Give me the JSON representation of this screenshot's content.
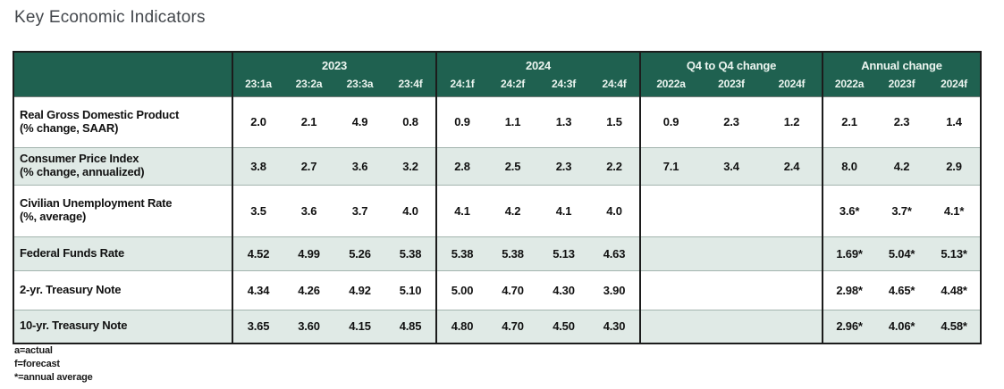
{
  "page": {
    "title": "Key Economic Indicators"
  },
  "colors": {
    "header_bg": "#1f6150",
    "header_text": "#ecf5f0",
    "stripe_bg": "#e0eae6",
    "border_dark": "#1c1c1c",
    "border_light": "#a3b4ae",
    "title_text": "#43474c"
  },
  "chart_data": {
    "type": "table",
    "title": "Key Economic Indicators",
    "column_groups": [
      {
        "label": "2023",
        "columns": [
          "23:1a",
          "23:2a",
          "23:3a",
          "23:4f"
        ]
      },
      {
        "label": "2024",
        "columns": [
          "24:1f",
          "24:2f",
          "24:3f",
          "24:4f"
        ]
      },
      {
        "label": "Q4 to Q4 change",
        "columns": [
          "2022a",
          "2023f",
          "2024f"
        ]
      },
      {
        "label": "Annual change",
        "columns": [
          "2022a",
          "2023f",
          "2024f"
        ]
      }
    ],
    "rows": [
      {
        "label": "Real Gross Domestic Product",
        "sublabel": "(% change, SAAR)",
        "values": [
          "2.0",
          "2.1",
          "4.9",
          "0.8",
          "0.9",
          "1.1",
          "1.3",
          "1.5",
          "0.9",
          "2.3",
          "1.2",
          "2.1",
          "2.3",
          "1.4"
        ]
      },
      {
        "label": "Consumer Price Index",
        "sublabel": "(% change, annualized)",
        "values": [
          "3.8",
          "2.7",
          "3.6",
          "3.2",
          "2.8",
          "2.5",
          "2.3",
          "2.2",
          "7.1",
          "3.4",
          "2.4",
          "8.0",
          "4.2",
          "2.9"
        ]
      },
      {
        "label": "Civilian Unemployment Rate",
        "sublabel": "(%, average)",
        "values": [
          "3.5",
          "3.6",
          "3.7",
          "4.0",
          "4.1",
          "4.2",
          "4.1",
          "4.0",
          "",
          "",
          "",
          "3.6*",
          "3.7*",
          "4.1*"
        ]
      },
      {
        "label": "Federal Funds Rate",
        "sublabel": "",
        "values": [
          "4.52",
          "4.99",
          "5.26",
          "5.38",
          "5.38",
          "5.38",
          "5.13",
          "4.63",
          "",
          "",
          "",
          "1.69*",
          "5.04*",
          "5.13*"
        ]
      },
      {
        "label": "2-yr. Treasury Note",
        "sublabel": "",
        "values": [
          "4.34",
          "4.26",
          "4.92",
          "5.10",
          "5.00",
          "4.70",
          "4.30",
          "3.90",
          "",
          "",
          "",
          "2.98*",
          "4.65*",
          "4.48*"
        ]
      },
      {
        "label": "10-yr. Treasury Note",
        "sublabel": "",
        "values": [
          "3.65",
          "3.60",
          "4.15",
          "4.85",
          "4.80",
          "4.70",
          "4.50",
          "4.30",
          "",
          "",
          "",
          "2.96*",
          "4.06*",
          "4.58*"
        ]
      }
    ]
  },
  "footnotes": [
    "a=actual",
    "f=forecast",
    "*=annual average"
  ]
}
